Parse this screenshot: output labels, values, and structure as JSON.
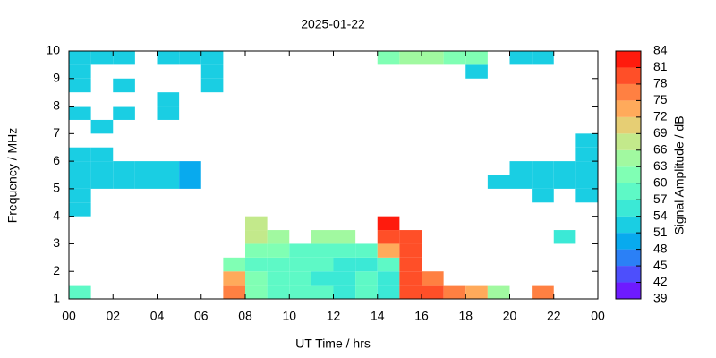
{
  "chart_data": {
    "type": "heatmap",
    "title": "2025-01-22",
    "xlabel": "UT Time / hrs",
    "ylabel": "Frequency / MHz",
    "colorbar_label": "Signal Amplitude / dB",
    "xlim": [
      0,
      24
    ],
    "xticks": [
      {
        "value": 0,
        "label": "00"
      },
      {
        "value": 2,
        "label": "02"
      },
      {
        "value": 4,
        "label": "04"
      },
      {
        "value": 6,
        "label": "06"
      },
      {
        "value": 8,
        "label": "08"
      },
      10,
      12,
      14,
      16,
      18,
      20,
      22,
      {
        "value": 24,
        "label": "00"
      }
    ],
    "ylim": [
      1,
      10
    ],
    "yticks": [
      1,
      2,
      3,
      4,
      5,
      6,
      7,
      8,
      9,
      10
    ],
    "zlim": [
      39,
      84
    ],
    "zticks": [
      39,
      42,
      45,
      48,
      51,
      54,
      57,
      60,
      63,
      66,
      69,
      72,
      75,
      78,
      81,
      84
    ],
    "colorscale": [
      "#6e1bff",
      "#4d4ffc",
      "#2b80f6",
      "#08aaee",
      "#1acee3",
      "#3be9d6",
      "#5ef9c6",
      "#80ffb4",
      "#a1f9a0",
      "#c3e98b",
      "#e6ce74",
      "#ffaa5b",
      "#ff8042",
      "#ff4f28",
      "#ff1b0d"
    ],
    "x": [
      0.5,
      1.5,
      2.5,
      3.5,
      4.5,
      5.5,
      6.5,
      7.5,
      8.5,
      9.5,
      10.5,
      11.5,
      12.5,
      13.5,
      14.5,
      15.5,
      16.5,
      17.5,
      18.5,
      19.5,
      20.5,
      21.5,
      22.5,
      23.5
    ],
    "y": [
      1.25,
      1.75,
      2.25,
      2.75,
      3.25,
      3.75,
      4.25,
      4.75,
      5.25,
      5.75,
      6.25,
      6.75,
      7.25,
      7.75,
      8.25,
      8.75,
      9.25,
      9.75
    ],
    "values": [
      [
        57,
        null,
        null,
        null,
        null,
        null,
        null,
        75,
        60,
        58,
        57,
        57,
        56,
        57,
        55,
        78,
        78,
        75,
        72,
        63,
        null,
        75,
        null,
        null
      ],
      [
        null,
        null,
        null,
        null,
        null,
        null,
        null,
        72,
        60,
        57,
        57,
        56,
        55,
        57,
        56,
        80,
        75,
        null,
        null,
        null,
        null,
        null,
        null,
        null
      ],
      [
        null,
        null,
        null,
        null,
        null,
        null,
        null,
        60,
        58,
        58,
        57,
        57,
        56,
        55,
        58,
        80,
        null,
        null,
        null,
        null,
        null,
        null,
        null,
        null
      ],
      [
        null,
        null,
        null,
        null,
        null,
        null,
        null,
        null,
        60,
        60,
        58,
        58,
        57,
        57,
        72,
        80,
        null,
        null,
        null,
        null,
        null,
        null,
        null,
        null
      ],
      [
        null,
        null,
        null,
        null,
        null,
        null,
        null,
        null,
        66,
        63,
        null,
        64,
        63,
        null,
        78,
        78,
        null,
        null,
        null,
        null,
        null,
        null,
        56,
        null
      ],
      [
        null,
        null,
        null,
        null,
        null,
        null,
        null,
        null,
        66,
        null,
        null,
        null,
        null,
        null,
        81,
        null,
        null,
        null,
        null,
        null,
        null,
        null,
        null,
        null
      ],
      [
        52,
        null,
        null,
        null,
        null,
        null,
        null,
        null,
        null,
        null,
        null,
        null,
        null,
        null,
        null,
        null,
        null,
        null,
        null,
        null,
        null,
        null,
        null,
        null
      ],
      [
        52,
        null,
        null,
        null,
        null,
        null,
        null,
        null,
        null,
        null,
        null,
        null,
        null,
        null,
        null,
        null,
        null,
        null,
        null,
        null,
        null,
        52,
        null,
        52
      ],
      [
        51,
        52,
        52,
        51,
        53,
        48,
        null,
        null,
        null,
        null,
        null,
        null,
        null,
        null,
        null,
        null,
        null,
        null,
        null,
        52,
        51,
        52,
        53,
        52
      ],
      [
        52,
        52,
        51,
        52,
        52,
        48,
        null,
        null,
        null,
        null,
        null,
        null,
        null,
        null,
        null,
        null,
        null,
        null,
        null,
        null,
        52,
        52,
        52,
        52
      ],
      [
        52,
        52,
        null,
        null,
        null,
        null,
        null,
        null,
        null,
        null,
        null,
        null,
        null,
        null,
        null,
        null,
        null,
        null,
        null,
        null,
        null,
        null,
        null,
        52
      ],
      [
        null,
        null,
        null,
        null,
        null,
        null,
        null,
        null,
        null,
        null,
        null,
        null,
        null,
        null,
        null,
        null,
        null,
        null,
        null,
        null,
        null,
        null,
        null,
        52
      ],
      [
        null,
        51,
        null,
        null,
        null,
        null,
        null,
        null,
        null,
        null,
        null,
        null,
        null,
        null,
        null,
        null,
        null,
        null,
        null,
        null,
        null,
        null,
        null,
        null
      ],
      [
        52,
        null,
        52,
        null,
        52,
        null,
        null,
        null,
        null,
        null,
        null,
        null,
        null,
        null,
        null,
        null,
        null,
        null,
        null,
        null,
        null,
        null,
        null,
        null
      ],
      [
        null,
        null,
        null,
        null,
        51,
        null,
        null,
        null,
        null,
        null,
        null,
        null,
        null,
        null,
        null,
        null,
        null,
        null,
        null,
        null,
        null,
        null,
        null,
        null
      ],
      [
        52,
        null,
        52,
        null,
        null,
        null,
        52,
        null,
        null,
        null,
        null,
        null,
        null,
        null,
        null,
        null,
        null,
        null,
        null,
        null,
        null,
        null,
        null,
        null
      ],
      [
        52,
        null,
        null,
        null,
        null,
        null,
        51,
        null,
        null,
        null,
        null,
        null,
        null,
        null,
        null,
        null,
        null,
        null,
        52,
        null,
        null,
        null,
        null,
        null
      ],
      [
        52,
        52,
        51,
        null,
        51,
        52,
        52,
        null,
        null,
        null,
        null,
        null,
        null,
        null,
        60,
        63,
        63,
        62,
        60,
        null,
        52,
        52,
        null,
        null
      ]
    ]
  }
}
